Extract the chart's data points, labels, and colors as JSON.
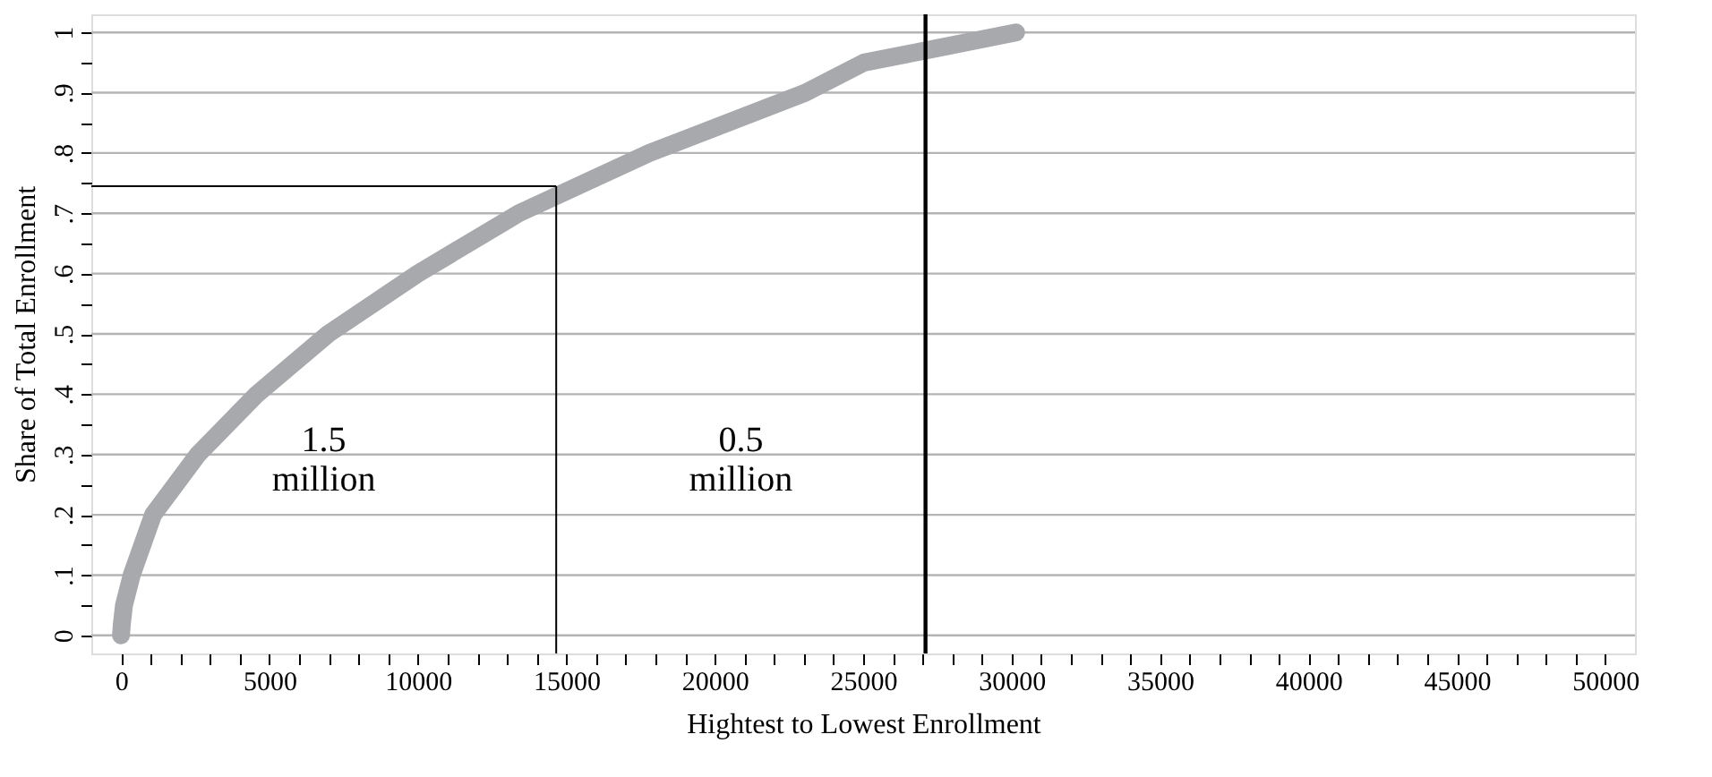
{
  "chart_data": {
    "type": "line",
    "xlabel": "Hightest to Lowest Enrollment",
    "ylabel": "Share of Total Enrollment",
    "series": [
      {
        "color": "#a7a9ac",
        "x": [
          0,
          30,
          100,
          360,
          1080,
          2590,
          4580,
          6980,
          10000,
          13400,
          17800,
          23050,
          25030,
          27100,
          30150
        ],
        "values": [
          0,
          0.02,
          0.05,
          0.1,
          0.2,
          0.3,
          0.4,
          0.5,
          0.6,
          0.7,
          0.8,
          0.9,
          0.95,
          0.97,
          1.0
        ]
      }
    ],
    "xlim": [
      -1000,
      51000
    ],
    "ylim": [
      -0.03,
      1.03
    ],
    "xticks": [
      0,
      {
        "value": 1000,
        "label": null
      },
      {
        "value": 2000,
        "label": null
      },
      {
        "value": 3000,
        "label": null
      },
      {
        "value": 4000,
        "label": null
      },
      5000,
      {
        "value": 6000,
        "label": null
      },
      {
        "value": 7000,
        "label": null
      },
      {
        "value": 8000,
        "label": null
      },
      {
        "value": 9000,
        "label": null
      },
      10000,
      {
        "value": 11000,
        "label": null
      },
      {
        "value": 12000,
        "label": null
      },
      {
        "value": 13000,
        "label": null
      },
      {
        "value": 14000,
        "label": null
      },
      15000,
      {
        "value": 16000,
        "label": null
      },
      {
        "value": 17000,
        "label": null
      },
      {
        "value": 18000,
        "label": null
      },
      {
        "value": 19000,
        "label": null
      },
      20000,
      {
        "value": 21000,
        "label": null
      },
      {
        "value": 22000,
        "label": null
      },
      {
        "value": 23000,
        "label": null
      },
      {
        "value": 24000,
        "label": null
      },
      25000,
      {
        "value": 26000,
        "label": null
      },
      {
        "value": 27000,
        "label": null
      },
      {
        "value": 28000,
        "label": null
      },
      {
        "value": 29000,
        "label": null
      },
      30000,
      {
        "value": 31000,
        "label": null
      },
      {
        "value": 32000,
        "label": null
      },
      {
        "value": 33000,
        "label": null
      },
      {
        "value": 34000,
        "label": null
      },
      35000,
      {
        "value": 36000,
        "label": null
      },
      {
        "value": 37000,
        "label": null
      },
      {
        "value": 38000,
        "label": null
      },
      {
        "value": 39000,
        "label": null
      },
      40000,
      {
        "value": 41000,
        "label": null
      },
      {
        "value": 42000,
        "label": null
      },
      {
        "value": 43000,
        "label": null
      },
      {
        "value": 44000,
        "label": null
      },
      45000,
      {
        "value": 46000,
        "label": null
      },
      {
        "value": 47000,
        "label": null
      },
      {
        "value": 48000,
        "label": null
      },
      {
        "value": 49000,
        "label": null
      },
      50000
    ],
    "yticks": [
      0,
      {
        "value": 0.05,
        "label": null
      },
      {
        "value": 0.1,
        "label": ".1"
      },
      {
        "value": 0.15,
        "label": null
      },
      {
        "value": 0.2,
        "label": ".2"
      },
      {
        "value": 0.25,
        "label": null
      },
      {
        "value": 0.3,
        "label": ".3"
      },
      {
        "value": 0.35,
        "label": null
      },
      {
        "value": 0.4,
        "label": ".4"
      },
      {
        "value": 0.45,
        "label": null
      },
      {
        "value": 0.5,
        "label": ".5"
      },
      {
        "value": 0.55,
        "label": null
      },
      {
        "value": 0.6,
        "label": ".6"
      },
      {
        "value": 0.65,
        "label": null
      },
      {
        "value": 0.7,
        "label": ".7"
      },
      {
        "value": 0.75,
        "label": null
      },
      {
        "value": 0.8,
        "label": ".8"
      },
      {
        "value": 0.85,
        "label": null
      },
      {
        "value": 0.9,
        "label": ".9"
      },
      {
        "value": 0.95,
        "label": null
      },
      1
    ],
    "grid": "y",
    "ref_lines": [
      {
        "axis": "y",
        "value": 0.745,
        "color": "#000000"
      },
      {
        "axis": "x",
        "value": 14660,
        "color": "#000000"
      },
      {
        "axis": "x",
        "value": 27100,
        "color": "#000000"
      }
    ],
    "annotations": [
      "1.5 million",
      "0.5 million"
    ]
  }
}
